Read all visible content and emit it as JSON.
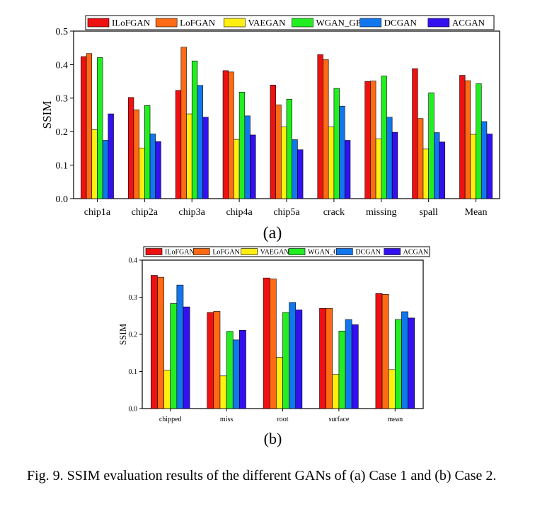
{
  "colors": {
    "ILoFGAN": "#ee1111",
    "LoFGAN": "#ff6a14",
    "VAEGAN": "#ffee11",
    "WGAN_GP": "#22ee22",
    "DCGAN": "#1177ee",
    "ACGAN": "#3311ee"
  },
  "caption": "Fig. 9.   SSIM evaluation results of the different GANs of (a) Case 1 and (b) Case 2.",
  "chart_data": [
    {
      "type": "bar",
      "panel_label": "(a)",
      "ylabel": "SSIM",
      "ylim": [
        0,
        0.5
      ],
      "yticks": [
        "0.0",
        "0.1",
        "0.2",
        "0.3",
        "0.4",
        "0.5"
      ],
      "legend_position": "top",
      "categories": [
        "chip1a",
        "chip2a",
        "chip3a",
        "chip4a",
        "chip5a",
        "crack",
        "missing",
        "spall",
        "Mean"
      ],
      "series": [
        {
          "name": "ILoFGAN",
          "values": [
            0.424,
            0.302,
            0.323,
            0.382,
            0.339,
            0.43,
            0.35,
            0.388,
            0.368
          ]
        },
        {
          "name": "LoFGAN",
          "values": [
            0.433,
            0.265,
            0.452,
            0.378,
            0.28,
            0.415,
            0.351,
            0.239,
            0.352
          ]
        },
        {
          "name": "VAEGAN",
          "values": [
            0.206,
            0.151,
            0.253,
            0.177,
            0.214,
            0.214,
            0.178,
            0.148,
            0.192
          ]
        },
        {
          "name": "WGAN_GP",
          "values": [
            0.421,
            0.278,
            0.411,
            0.318,
            0.297,
            0.329,
            0.366,
            0.316,
            0.343
          ]
        },
        {
          "name": "DCGAN",
          "values": [
            0.174,
            0.193,
            0.338,
            0.247,
            0.176,
            0.276,
            0.243,
            0.197,
            0.23
          ]
        },
        {
          "name": "ACGAN",
          "values": [
            0.253,
            0.17,
            0.243,
            0.19,
            0.146,
            0.174,
            0.198,
            0.169,
            0.193
          ]
        }
      ]
    },
    {
      "type": "bar",
      "panel_label": "(b)",
      "ylabel": "SSIM",
      "ylim": [
        0,
        0.4
      ],
      "yticks": [
        "0.0",
        "0.1",
        "0.2",
        "0.3",
        "0.4"
      ],
      "legend_position": "top",
      "categories": [
        "chipped",
        "miss",
        "root",
        "surface",
        "mean"
      ],
      "series": [
        {
          "name": "ILoFGAN",
          "values": [
            0.359,
            0.259,
            0.352,
            0.27,
            0.31
          ]
        },
        {
          "name": "LoFGAN",
          "values": [
            0.354,
            0.262,
            0.349,
            0.27,
            0.308
          ]
        },
        {
          "name": "VAEGAN",
          "values": [
            0.103,
            0.088,
            0.138,
            0.092,
            0.105
          ]
        },
        {
          "name": "WGAN_GP",
          "values": [
            0.283,
            0.208,
            0.259,
            0.209,
            0.24
          ]
        },
        {
          "name": "DCGAN",
          "values": [
            0.333,
            0.185,
            0.286,
            0.24,
            0.261
          ]
        },
        {
          "name": "ACGAN",
          "values": [
            0.274,
            0.211,
            0.266,
            0.226,
            0.244
          ]
        }
      ]
    }
  ]
}
